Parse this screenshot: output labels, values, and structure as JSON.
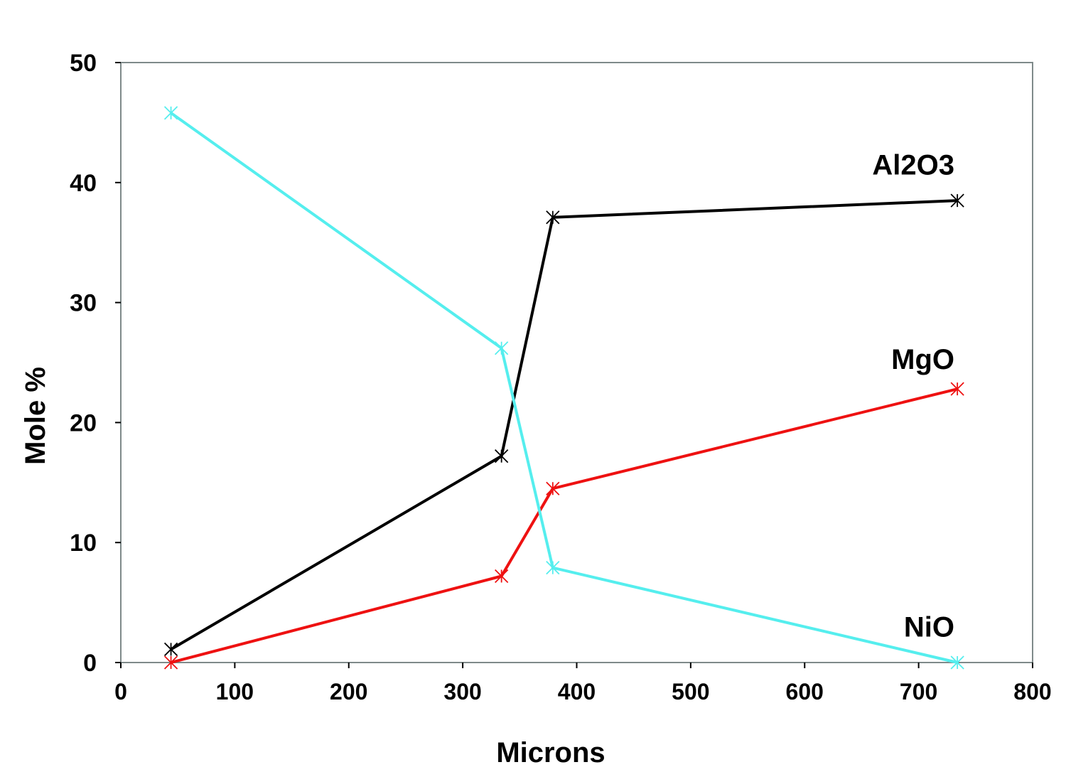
{
  "chart_data": {
    "type": "line",
    "title": "",
    "xlabel": "Microns",
    "ylabel": "Mole %",
    "xlim": [
      0,
      800
    ],
    "ylim": [
      0,
      50
    ],
    "xticks": [
      0,
      100,
      200,
      300,
      400,
      500,
      600,
      700,
      800
    ],
    "yticks": [
      0,
      10,
      20,
      30,
      40,
      50
    ],
    "grid": false,
    "legend": "inline labels at right end of series",
    "series": [
      {
        "name": "Al2O3",
        "color": "#000000",
        "marker": "asterisk",
        "x": [
          44,
          334,
          379,
          734
        ],
        "y": [
          1.1,
          17.2,
          37.1,
          38.5
        ],
        "label_y": 41.5
      },
      {
        "name": "MgO",
        "color": "#ee1111",
        "marker": "asterisk",
        "x": [
          44,
          334,
          379,
          734
        ],
        "y": [
          0,
          7.2,
          14.5,
          22.8
        ],
        "label_y": 25.3
      },
      {
        "name": "NiO",
        "color": "#55eeee",
        "marker": "asterisk",
        "x": [
          44,
          334,
          379,
          734
        ],
        "y": [
          45.8,
          26.2,
          7.9,
          0
        ],
        "label_y": 3.0
      }
    ]
  }
}
